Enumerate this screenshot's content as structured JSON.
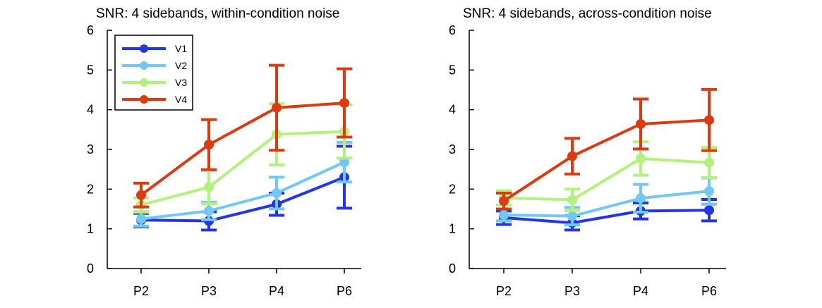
{
  "chart_data": [
    {
      "type": "line",
      "title": "SNR: 4 sidebands, within-condition noise",
      "xlabel": "",
      "ylabel": "",
      "categories": [
        "P2",
        "P3",
        "P4",
        "P6"
      ],
      "ylim": [
        0,
        6
      ],
      "yticks": [
        "0",
        "1",
        "2",
        "3",
        "4",
        "5",
        "6"
      ],
      "error_bars": true,
      "legend": "top-left",
      "series": [
        {
          "name": "V1",
          "color": "#2236e8",
          "values": [
            1.22,
            1.2,
            1.62,
            2.3
          ],
          "err": [
            0.17,
            0.23,
            0.28,
            0.78
          ]
        },
        {
          "name": "V2",
          "color": "#72c8f5",
          "values": [
            1.25,
            1.45,
            1.9,
            2.68
          ],
          "err": [
            0.18,
            0.22,
            0.4,
            0.5
          ]
        },
        {
          "name": "V3",
          "color": "#b2f27c",
          "values": [
            1.6,
            2.05,
            3.38,
            3.45
          ],
          "err": [
            0.18,
            0.42,
            0.77,
            0.67
          ]
        },
        {
          "name": "V4",
          "color": "#dc3b10",
          "values": [
            1.85,
            3.12,
            4.05,
            4.17
          ],
          "err": [
            0.3,
            0.63,
            1.07,
            0.86
          ]
        }
      ]
    },
    {
      "type": "line",
      "title": "SNR: 4 sidebands, across-condition noise",
      "xlabel": "",
      "ylabel": "",
      "categories": [
        "P2",
        "P3",
        "P4",
        "P6"
      ],
      "ylim": [
        0,
        6
      ],
      "yticks": [
        "0",
        "1",
        "2",
        "3",
        "4",
        "5",
        "6"
      ],
      "error_bars": true,
      "legend": "none",
      "series": [
        {
          "name": "V1",
          "color": "#2236e8",
          "values": [
            1.28,
            1.15,
            1.45,
            1.47
          ],
          "err": [
            0.17,
            0.18,
            0.2,
            0.27
          ]
        },
        {
          "name": "V2",
          "color": "#72c8f5",
          "values": [
            1.35,
            1.32,
            1.77,
            1.95
          ],
          "err": [
            0.15,
            0.22,
            0.35,
            0.33
          ]
        },
        {
          "name": "V3",
          "color": "#b2f27c",
          "values": [
            1.78,
            1.73,
            2.77,
            2.67
          ],
          "err": [
            0.18,
            0.27,
            0.42,
            0.38
          ]
        },
        {
          "name": "V4",
          "color": "#dc3b10",
          "values": [
            1.7,
            2.83,
            3.64,
            3.74
          ],
          "err": [
            0.2,
            0.45,
            0.63,
            0.77
          ]
        }
      ]
    }
  ]
}
